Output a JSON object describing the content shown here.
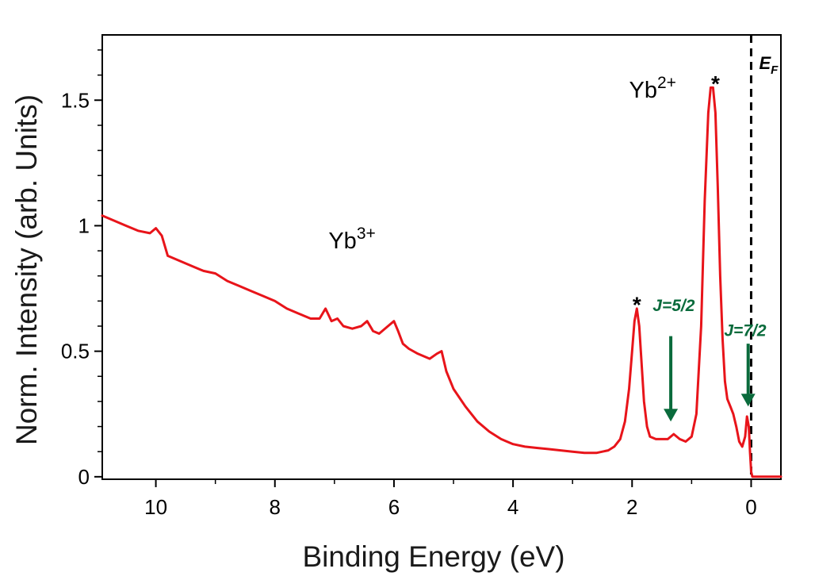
{
  "chart_data": {
    "type": "line",
    "xlabel": "Binding Energy (eV)",
    "ylabel": "Norm. Intensity (arb. Units)",
    "xlim": [
      10.9,
      -0.5
    ],
    "ylim": [
      -0.01,
      1.76
    ],
    "x_reversed": true,
    "x_ticks": [
      10,
      8,
      6,
      4,
      2,
      0
    ],
    "x_tick_labels": [
      "10",
      "8",
      "6",
      "4",
      "2",
      "0"
    ],
    "y_ticks": [
      0,
      0.5,
      1,
      1.5
    ],
    "y_tick_labels": [
      "0",
      "0.5",
      "1",
      "1.5"
    ],
    "grid": false,
    "series": [
      {
        "name": "spectrum",
        "color": "#e8141a",
        "x": [
          10.9,
          10.7,
          10.5,
          10.3,
          10.1,
          10.0,
          9.9,
          9.8,
          9.6,
          9.4,
          9.2,
          9.0,
          8.8,
          8.6,
          8.4,
          8.2,
          8.0,
          7.8,
          7.6,
          7.4,
          7.25,
          7.15,
          7.05,
          6.95,
          6.85,
          6.7,
          6.55,
          6.45,
          6.35,
          6.25,
          6.1,
          6.0,
          5.93,
          5.85,
          5.75,
          5.6,
          5.4,
          5.28,
          5.2,
          5.12,
          5.0,
          4.8,
          4.6,
          4.4,
          4.2,
          4.0,
          3.8,
          3.6,
          3.4,
          3.2,
          3.0,
          2.8,
          2.6,
          2.4,
          2.3,
          2.2,
          2.12,
          2.05,
          2.0,
          1.96,
          1.92,
          1.88,
          1.84,
          1.8,
          1.75,
          1.7,
          1.6,
          1.5,
          1.4,
          1.3,
          1.2,
          1.1,
          1.0,
          0.92,
          0.84,
          0.78,
          0.72,
          0.68,
          0.64,
          0.6,
          0.56,
          0.52,
          0.48,
          0.44,
          0.4,
          0.35,
          0.3,
          0.25,
          0.2,
          0.15,
          0.1,
          0.07,
          0.04,
          0.02,
          0.0,
          -0.02,
          -0.05,
          -0.1,
          -0.2,
          -0.3,
          -0.4,
          -0.5
        ],
        "y": [
          1.04,
          1.02,
          1.0,
          0.98,
          0.97,
          0.99,
          0.96,
          0.88,
          0.86,
          0.84,
          0.82,
          0.81,
          0.78,
          0.76,
          0.74,
          0.72,
          0.7,
          0.67,
          0.65,
          0.63,
          0.63,
          0.67,
          0.62,
          0.63,
          0.6,
          0.59,
          0.6,
          0.62,
          0.58,
          0.57,
          0.6,
          0.62,
          0.58,
          0.53,
          0.51,
          0.49,
          0.47,
          0.49,
          0.5,
          0.42,
          0.35,
          0.28,
          0.22,
          0.18,
          0.15,
          0.13,
          0.12,
          0.115,
          0.11,
          0.105,
          0.1,
          0.095,
          0.095,
          0.105,
          0.12,
          0.15,
          0.22,
          0.35,
          0.5,
          0.62,
          0.67,
          0.6,
          0.45,
          0.3,
          0.2,
          0.16,
          0.15,
          0.15,
          0.15,
          0.17,
          0.15,
          0.14,
          0.16,
          0.25,
          0.6,
          1.1,
          1.45,
          1.55,
          1.55,
          1.45,
          1.15,
          0.8,
          0.55,
          0.38,
          0.31,
          0.28,
          0.25,
          0.2,
          0.14,
          0.12,
          0.16,
          0.24,
          0.2,
          0.1,
          0.02,
          0.0,
          0.0,
          0.0,
          0.0,
          0.0,
          0.0,
          0.0
        ]
      }
    ],
    "fermi_line": {
      "x": 0,
      "label": "E",
      "label_sub": "F",
      "style": "dashed",
      "color": "#000000"
    },
    "annotations": [
      {
        "text": "Yb",
        "sup": "3+",
        "x": 7.1,
        "y": 0.91,
        "anchor": "start"
      },
      {
        "text": "Yb",
        "sup": "2+",
        "x": 2.05,
        "y": 1.51,
        "anchor": "start"
      },
      {
        "text": "*",
        "x": 1.92,
        "y": 0.7,
        "kind": "star"
      },
      {
        "text": "*",
        "x": 0.6,
        "y": 1.58,
        "kind": "star"
      },
      {
        "text": "J=5/2",
        "x": 1.3,
        "y": 0.66,
        "kind": "j",
        "color": "#0a6b3c"
      },
      {
        "text": "J=7/2",
        "x": 0.1,
        "y": 0.56,
        "kind": "j",
        "color": "#0a6b3c"
      }
    ],
    "arrows": [
      {
        "x": 1.35,
        "y_from": 0.56,
        "y_to": 0.22,
        "color": "#0a6b3c"
      },
      {
        "x": 0.05,
        "y_from": 0.53,
        "y_to": 0.28,
        "color": "#0a6b3c"
      }
    ]
  }
}
